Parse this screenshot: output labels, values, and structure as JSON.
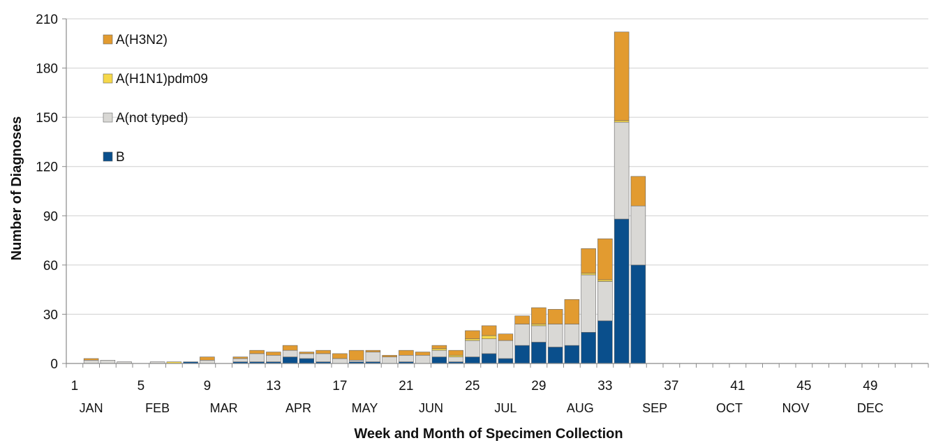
{
  "chart_data": {
    "type": "bar",
    "stacked": true,
    "xlabel": "Week and Month of Specimen Collection",
    "ylabel": "Number of Diagnoses",
    "ylim": [
      0,
      210
    ],
    "yticks": [
      0,
      30,
      60,
      90,
      120,
      150,
      180,
      210
    ],
    "xlim": [
      1,
      52
    ],
    "xticks": [
      1,
      5,
      9,
      13,
      17,
      21,
      25,
      29,
      33,
      37,
      41,
      45,
      49
    ],
    "months": [
      {
        "label": "JAN",
        "week": 2
      },
      {
        "label": "FEB",
        "week": 6
      },
      {
        "label": "MAR",
        "week": 10
      },
      {
        "label": "APR",
        "week": 14.5
      },
      {
        "label": "MAY",
        "week": 18.5
      },
      {
        "label": "JUN",
        "week": 22.5
      },
      {
        "label": "JUL",
        "week": 27
      },
      {
        "label": "AUG",
        "week": 31.5
      },
      {
        "label": "SEP",
        "week": 36
      },
      {
        "label": "OCT",
        "week": 40.5
      },
      {
        "label": "NOV",
        "week": 44.5
      },
      {
        "label": "DEC",
        "week": 49
      }
    ],
    "grid": true,
    "legend_position": "top-left",
    "weeks": [
      2,
      3,
      4,
      6,
      7,
      8,
      9,
      11,
      12,
      13,
      14,
      15,
      16,
      17,
      18,
      19,
      20,
      21,
      22,
      23,
      24,
      25,
      26,
      27,
      28,
      29,
      30,
      31,
      32,
      33,
      34,
      35
    ],
    "series": [
      {
        "name": "B",
        "color": "#0a4f8c",
        "values": [
          0,
          0,
          0,
          0,
          0,
          1,
          0,
          1,
          1,
          1,
          4,
          3,
          1,
          0,
          1,
          1,
          0,
          1,
          0,
          4,
          1,
          4,
          6,
          3,
          11,
          13,
          10,
          11,
          19,
          26,
          88,
          60
        ]
      },
      {
        "name": "A(not typed)",
        "color": "#d9d8d5",
        "values": [
          2,
          2,
          1,
          1,
          0,
          0,
          2,
          2,
          5,
          4,
          4,
          3,
          5,
          3,
          1,
          6,
          4,
          4,
          5,
          4,
          3,
          10,
          9,
          11,
          13,
          10,
          14,
          13,
          35,
          24,
          59,
          36
        ]
      },
      {
        "name": "A(H1N1)pdm09",
        "color": "#f6d84a",
        "values": [
          0,
          0,
          0,
          0,
          1,
          0,
          0,
          0,
          0,
          0,
          0,
          0,
          0,
          0,
          0,
          0,
          0,
          0,
          0,
          1,
          1,
          1,
          2,
          0,
          0,
          1,
          0,
          0,
          1,
          1,
          1,
          0
        ]
      },
      {
        "name": "A(H3N2)",
        "color": "#e29b30",
        "values": [
          1,
          0,
          0,
          0,
          0,
          0,
          2,
          1,
          2,
          2,
          3,
          1,
          2,
          3,
          6,
          1,
          1,
          3,
          2,
          2,
          3,
          5,
          6,
          4,
          5,
          10,
          9,
          15,
          15,
          25,
          54,
          18
        ]
      }
    ],
    "legend_order": [
      "A(H3N2)",
      "A(H1N1)pdm09",
      "A(not typed)",
      "B"
    ]
  }
}
